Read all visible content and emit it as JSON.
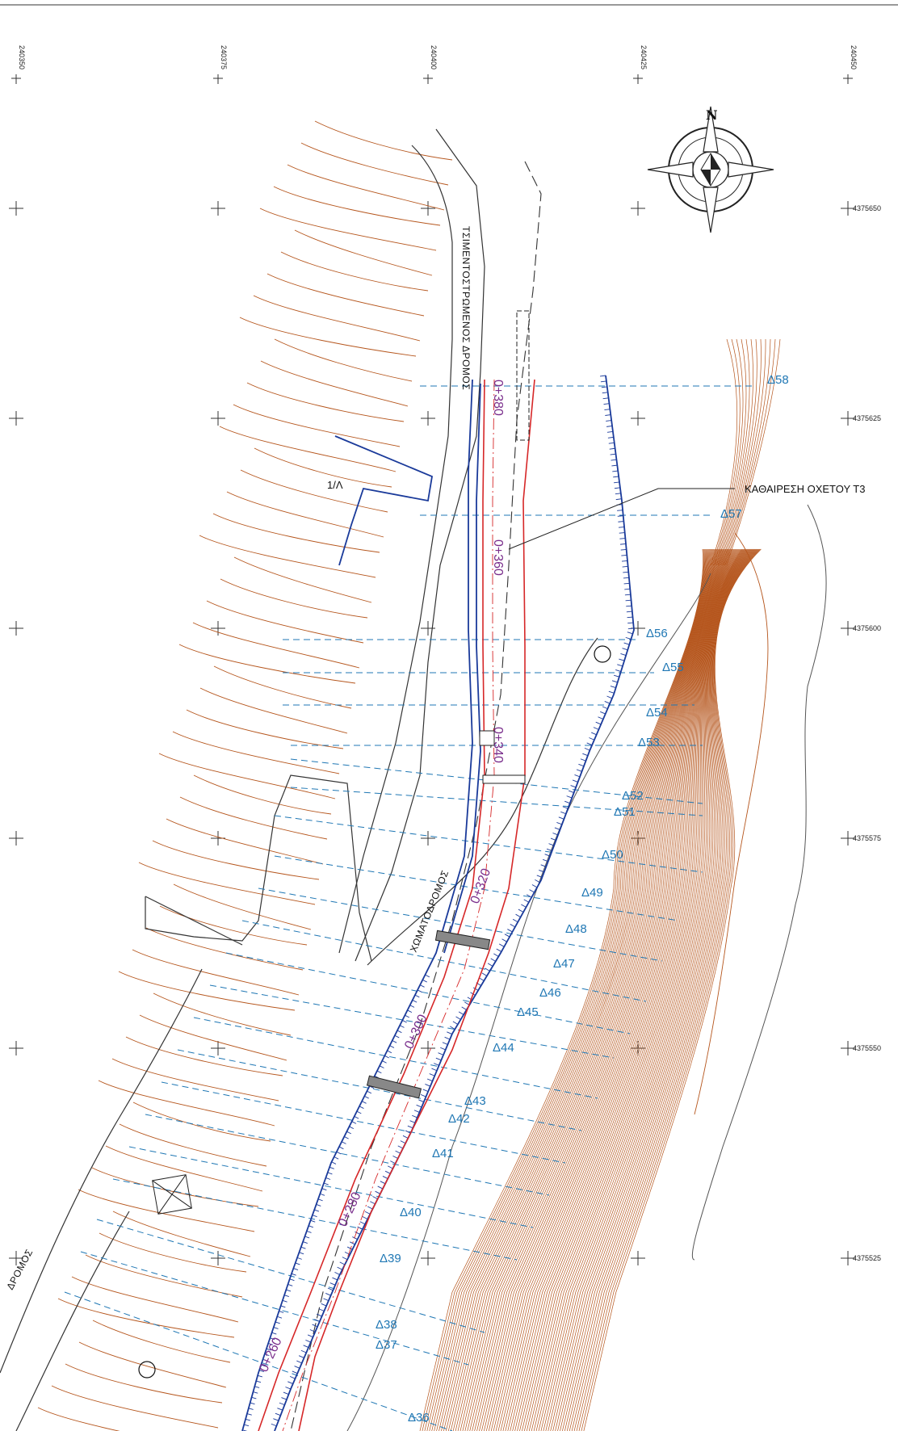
{
  "grid": {
    "eastings": [
      "240350",
      "240375",
      "240400",
      "240425",
      "240450"
    ],
    "northings": [
      "4375650",
      "4375625",
      "4375600",
      "4375575",
      "4375550",
      "4375525"
    ]
  },
  "compass": {
    "north_label": "N"
  },
  "labels": {
    "cement_road": "ΤΣΙΜΕΝΤΟΣΤΡΩΜΕΝΟΣ ΔΡΟΜΟΣ",
    "dirt_road": "ΧΩΜΑΤΟΔΡΟΜΟΣ",
    "road_left": "ΔΡΟΜΟΣ",
    "slope": "1/Λ",
    "demolition": "ΚΑΘΑΙΡΕΣΗ ΟΧΕΤΟΥ Τ3"
  },
  "chainages": [
    "0+380",
    "0+360",
    "0+340",
    "0+320",
    "0+300",
    "0+280",
    "0+260"
  ],
  "sections": [
    "Δ58",
    "Δ57",
    "Δ56",
    "Δ55",
    "Δ54",
    "Δ53",
    "Δ52",
    "Δ51",
    "Δ50",
    "Δ49",
    "Δ48",
    "Δ47",
    "Δ46",
    "Δ45",
    "Δ44",
    "Δ43",
    "Δ42",
    "Δ41",
    "Δ40",
    "Δ39",
    "Δ38",
    "Δ37",
    "Δ36"
  ],
  "colors": {
    "contour": "#b5551c",
    "section": "#1f77b4",
    "alignment": "#d62728",
    "edge": "#1a3a9a",
    "axis": "#d62728",
    "road": "#333333",
    "chainage": "#7a2e8c"
  }
}
